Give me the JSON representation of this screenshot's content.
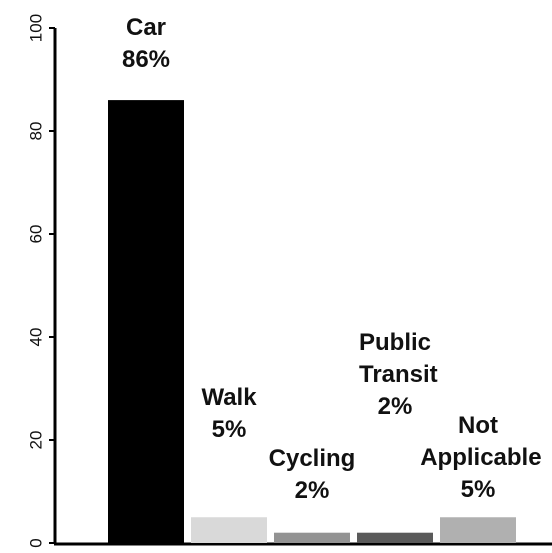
{
  "chart_data": {
    "type": "bar",
    "categories": [
      "Car",
      "Walk",
      "Cycling",
      "Public Transit",
      "Not Applicable"
    ],
    "values": [
      86,
      5,
      2,
      2,
      5
    ],
    "value_labels": [
      "86%",
      "5%",
      "2%",
      "2%",
      "5%"
    ],
    "colors": [
      "#000000",
      "#d9d9d9",
      "#939393",
      "#5a5a5a",
      "#b0b0b0"
    ],
    "ylim": [
      0,
      100
    ],
    "yticks": [
      0,
      20,
      40,
      60,
      80,
      100
    ]
  }
}
